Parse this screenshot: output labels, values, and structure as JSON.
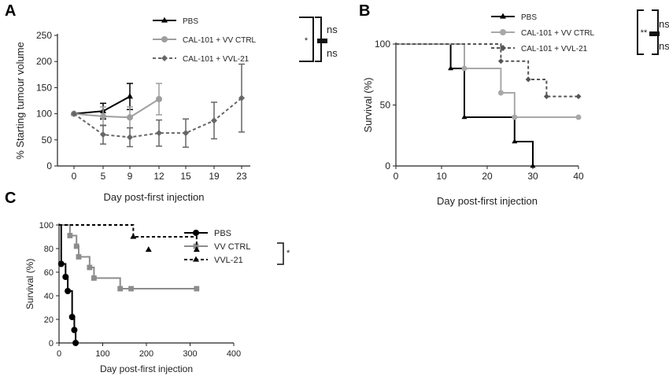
{
  "panels": [
    {
      "letter": "A",
      "type": "line",
      "ylabel": "% Starting tumour volume",
      "xlabel": "Day post-first injection",
      "x_ticks": [
        0,
        5,
        9,
        12,
        15,
        19,
        23
      ],
      "ylim": [
        0,
        250
      ],
      "y_ticks": [
        0,
        50,
        100,
        150,
        200,
        250
      ],
      "series": [
        {
          "name": "PBS",
          "color": "#000000",
          "style": "solid",
          "marker": "triangle",
          "points": [
            {
              "x": 0,
              "y": 100,
              "err": 0
            },
            {
              "x": 5,
              "y": 105,
              "err": 15
            },
            {
              "x": 9,
              "y": 133,
              "err": 25
            }
          ]
        },
        {
          "name": "CAL-101 + VV CTRL",
          "color": "#9e9e9e",
          "style": "solid",
          "marker": "circle",
          "points": [
            {
              "x": 0,
              "y": 100,
              "err": 0
            },
            {
              "x": 5,
              "y": 95,
              "err": 18
            },
            {
              "x": 9,
              "y": 93,
              "err": 20
            },
            {
              "x": 12,
              "y": 128,
              "err": 30
            }
          ]
        },
        {
          "name": "CAL-101 + VVL-21",
          "color": "#666666",
          "style": "dashed",
          "marker": "diamond",
          "points": [
            {
              "x": 0,
              "y": 100,
              "err": 0
            },
            {
              "x": 5,
              "y": 60,
              "err": 18
            },
            {
              "x": 9,
              "y": 55,
              "err": 18
            },
            {
              "x": 12,
              "y": 63,
              "err": 25
            },
            {
              "x": 15,
              "y": 63,
              "err": 27
            },
            {
              "x": 19,
              "y": 87,
              "err": 35
            },
            {
              "x": 23,
              "y": 130,
              "err": 65
            }
          ]
        }
      ],
      "significance": {
        "outer": "*",
        "upper": "ns",
        "lower": "ns"
      }
    },
    {
      "letter": "B",
      "type": "survival",
      "ylabel": "Survival (%)",
      "xlabel": "Day post-first injection",
      "xlim": [
        0,
        40
      ],
      "x_ticks": [
        0,
        10,
        20,
        30,
        40
      ],
      "ylim": [
        0,
        100
      ],
      "y_ticks": [
        0,
        50,
        100
      ],
      "series": [
        {
          "name": "PBS",
          "color": "#000000",
          "style": "solid",
          "marker": "triangle",
          "steps": [
            [
              0,
              100
            ],
            [
              12,
              80
            ],
            [
              15,
              40
            ],
            [
              26,
              20
            ],
            [
              30,
              0
            ]
          ],
          "end_x": 30
        },
        {
          "name": "CAL-101 + VV CTRL",
          "color": "#a8a8a8",
          "style": "solid",
          "marker": "circle",
          "steps": [
            [
              0,
              100
            ],
            [
              15,
              80
            ],
            [
              23,
              60
            ],
            [
              26,
              40
            ]
          ],
          "end_x": 40
        },
        {
          "name": "CAL-101 + VVL-21",
          "color": "#555555",
          "style": "dashed",
          "marker": "diamond",
          "steps": [
            [
              0,
              100
            ],
            [
              23,
              86
            ],
            [
              29,
              71
            ],
            [
              33,
              57
            ]
          ],
          "end_x": 40
        }
      ],
      "significance": {
        "outer": "**",
        "upper": "ns",
        "lower": "ns"
      }
    },
    {
      "letter": "C",
      "type": "survival",
      "ylabel": "Survival (%)",
      "xlabel": "Day post-first injection",
      "xlim": [
        0,
        400
      ],
      "x_ticks": [
        0,
        100,
        200,
        300,
        400
      ],
      "ylim": [
        0,
        100
      ],
      "y_ticks": [
        0,
        20,
        40,
        60,
        80,
        100
      ],
      "series": [
        {
          "name": "PBS",
          "color": "#000000",
          "style": "solid",
          "marker": "circle",
          "steps": [
            [
              0,
              100
            ],
            [
              5,
              67
            ],
            [
              15,
              56
            ],
            [
              20,
              44
            ],
            [
              30,
              22
            ],
            [
              35,
              11
            ],
            [
              38,
              0
            ]
          ],
          "end_x": 38
        },
        {
          "name": "VV  CTRL",
          "color": "#8c8c8c",
          "style": "solid",
          "marker": "square",
          "steps": [
            [
              0,
              100
            ],
            [
              25,
              91
            ],
            [
              40,
              82
            ],
            [
              45,
              73
            ],
            [
              70,
              64
            ],
            [
              80,
              55
            ],
            [
              140,
              46
            ]
          ],
          "end_x": 315,
          "censor_x": [
            165,
            315
          ]
        },
        {
          "name": "VVL-21",
          "color": "#000000",
          "style": "dashed",
          "marker": "triangle",
          "steps": [
            [
              0,
              100
            ],
            [
              170,
              90
            ],
            [
              315,
              79
            ]
          ],
          "end_x": 315,
          "censor_x": [
            205
          ]
        }
      ],
      "significance": {
        "outer": "*"
      }
    }
  ]
}
